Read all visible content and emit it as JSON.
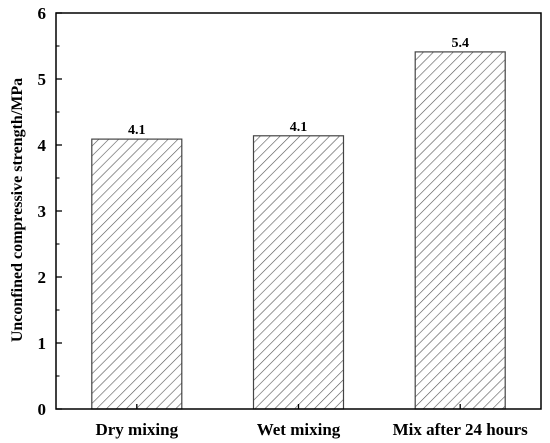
{
  "chart_data": {
    "type": "bar",
    "categories": [
      "Dry mixing",
      "Wet mixing",
      "Mix after 24 hours"
    ],
    "values": [
      4.09,
      4.14,
      5.41
    ],
    "data_labels": [
      "4.1",
      "4.1",
      "5.4"
    ],
    "title": "",
    "xlabel": "",
    "ylabel": "Unconfined compressive strength/MPa",
    "ylim": [
      0,
      6
    ],
    "yticks": [
      0,
      1,
      2,
      3,
      4,
      5,
      6
    ],
    "grid": false,
    "bar_fill": "hatched",
    "colors": {
      "bar_stroke": "#444444",
      "hatch": "#555555",
      "axis": "#000000"
    }
  }
}
